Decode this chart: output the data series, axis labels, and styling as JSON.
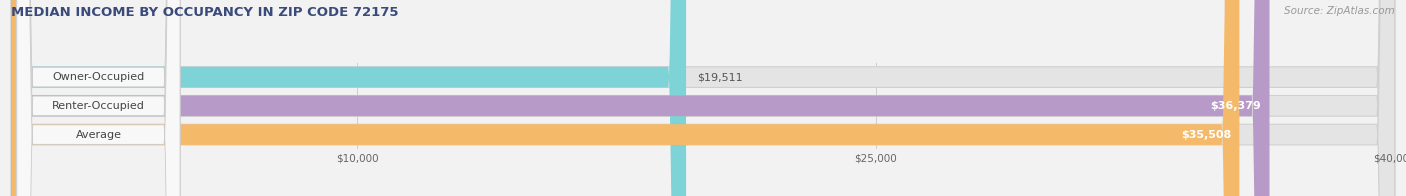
{
  "title": "MEDIAN INCOME BY OCCUPANCY IN ZIP CODE 72175",
  "source": "Source: ZipAtlas.com",
  "categories": [
    "Owner-Occupied",
    "Renter-Occupied",
    "Average"
  ],
  "values": [
    19511,
    36379,
    35508
  ],
  "bar_colors": [
    "#7dd3d6",
    "#b89ac8",
    "#f5b96a"
  ],
  "value_labels": [
    "$19,511",
    "$36,379",
    "$35,508"
  ],
  "xmax": 40000,
  "xticks": [
    10000,
    25000,
    40000
  ],
  "xtick_labels": [
    "$10,000",
    "$25,000",
    "$40,000"
  ],
  "background_color": "#f2f2f2",
  "bar_bg_color": "#e4e4e4",
  "title_color": "#3a4a7a",
  "source_color": "#999999",
  "title_fontsize": 9.5,
  "source_fontsize": 7.5,
  "label_fontsize": 8,
  "value_fontsize": 8,
  "tick_fontsize": 7.5,
  "bar_height": 0.72,
  "label_bg_color": "#f8f8f8",
  "label_border_color": "#cccccc"
}
